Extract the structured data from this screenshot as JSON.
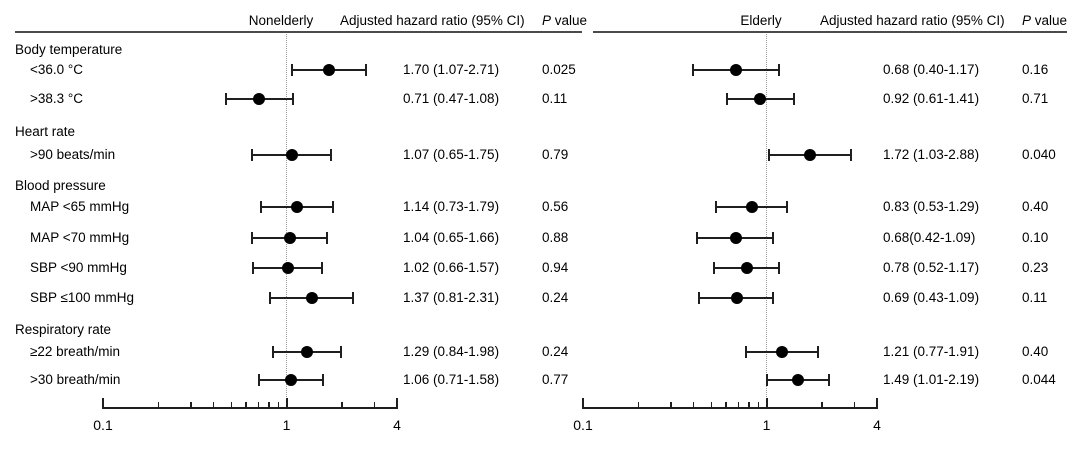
{
  "chart_data": {
    "type": "forest",
    "title": "",
    "xscale": "log",
    "xlim": [
      0.1,
      4
    ],
    "refline": 1,
    "xticks_major": {
      "values": [
        0.1,
        1,
        4
      ],
      "labels": [
        "0.1",
        "1",
        "4"
      ]
    },
    "xticks_minor": [
      0.2,
      0.3,
      0.4,
      0.5,
      0.6,
      0.7,
      0.8,
      0.9,
      2,
      3
    ],
    "marker_color": "#000000",
    "reference_line_style": "dotted",
    "panels": [
      {
        "key": "nonelderly",
        "header_group": "Nonelderly",
        "header_hr": "Adjusted hazard ratio (95% CI)",
        "header_p": "P value"
      },
      {
        "key": "elderly",
        "header_group": "Elderly",
        "header_hr": "Adjusted hazard ratio (95% CI)",
        "header_p": "P value"
      }
    ],
    "rows": [
      {
        "type": "group",
        "label": "Body temperature"
      },
      {
        "type": "item",
        "label": "<36.0 °C",
        "nonelderly": {
          "est": 1.7,
          "lo": 1.07,
          "hi": 2.71,
          "hr_text": "1.70 (1.07-2.71)",
          "p": "0.025"
        },
        "elderly": {
          "est": 0.68,
          "lo": 0.4,
          "hi": 1.17,
          "hr_text": "0.68 (0.40-1.17)",
          "p": "0.16"
        }
      },
      {
        "type": "item",
        "label": ">38.3 °C",
        "nonelderly": {
          "est": 0.71,
          "lo": 0.47,
          "hi": 1.08,
          "hr_text": "0.71 (0.47-1.08)",
          "p": "0.11"
        },
        "elderly": {
          "est": 0.92,
          "lo": 0.61,
          "hi": 1.41,
          "hr_text": "0.92 (0.61-1.41)",
          "p": "0.71"
        }
      },
      {
        "type": "group",
        "label": "Heart rate"
      },
      {
        "type": "item",
        "label": ">90 beats/min",
        "nonelderly": {
          "est": 1.07,
          "lo": 0.65,
          "hi": 1.75,
          "hr_text": "1.07 (0.65-1.75)",
          "p": "0.79"
        },
        "elderly": {
          "est": 1.72,
          "lo": 1.03,
          "hi": 2.88,
          "hr_text": "1.72 (1.03-2.88)",
          "p": "0.040"
        }
      },
      {
        "type": "group",
        "label": "Blood pressure"
      },
      {
        "type": "item",
        "label": "MAP <65 mmHg",
        "nonelderly": {
          "est": 1.14,
          "lo": 0.73,
          "hi": 1.79,
          "hr_text": "1.14 (0.73-1.79)",
          "p": "0.56"
        },
        "elderly": {
          "est": 0.83,
          "lo": 0.53,
          "hi": 1.29,
          "hr_text": "0.83 (0.53-1.29)",
          "p": "0.40"
        }
      },
      {
        "type": "item",
        "label": "MAP <70 mmHg",
        "nonelderly": {
          "est": 1.04,
          "lo": 0.65,
          "hi": 1.66,
          "hr_text": "1.04 (0.65-1.66)",
          "p": "0.88"
        },
        "elderly": {
          "est": 0.68,
          "lo": 0.42,
          "hi": 1.09,
          "hr_text": "0.68(0.42-1.09)",
          "p": "0.10"
        }
      },
      {
        "type": "item",
        "label": "SBP <90 mmHg",
        "nonelderly": {
          "est": 1.02,
          "lo": 0.66,
          "hi": 1.57,
          "hr_text": "1.02 (0.66-1.57)",
          "p": "0.94"
        },
        "elderly": {
          "est": 0.78,
          "lo": 0.52,
          "hi": 1.17,
          "hr_text": "0.78 (0.52-1.17)",
          "p": "0.23"
        }
      },
      {
        "type": "item",
        "label": "SBP ≤100 mmHg",
        "nonelderly": {
          "est": 1.37,
          "lo": 0.81,
          "hi": 2.31,
          "hr_text": "1.37 (0.81-2.31)",
          "p": "0.24"
        },
        "elderly": {
          "est": 0.69,
          "lo": 0.43,
          "hi": 1.09,
          "hr_text": "0.69 (0.43-1.09)",
          "p": "0.11"
        }
      },
      {
        "type": "group",
        "label": "Respiratory rate"
      },
      {
        "type": "item",
        "label": "≥22 breath/min",
        "nonelderly": {
          "est": 1.29,
          "lo": 0.84,
          "hi": 1.98,
          "hr_text": "1.29 (0.84-1.98)",
          "p": "0.24"
        },
        "elderly": {
          "est": 1.21,
          "lo": 0.77,
          "hi": 1.91,
          "hr_text": "1.21 (0.77-1.91)",
          "p": "0.40"
        }
      },
      {
        "type": "item",
        "label": ">30 breath/min",
        "nonelderly": {
          "est": 1.06,
          "lo": 0.71,
          "hi": 1.58,
          "hr_text": "1.06 (0.71-1.58)",
          "p": "0.77"
        },
        "elderly": {
          "est": 1.49,
          "lo": 1.01,
          "hi": 2.19,
          "hr_text": "1.49 (1.01-2.19)",
          "p": "0.044"
        }
      }
    ]
  }
}
